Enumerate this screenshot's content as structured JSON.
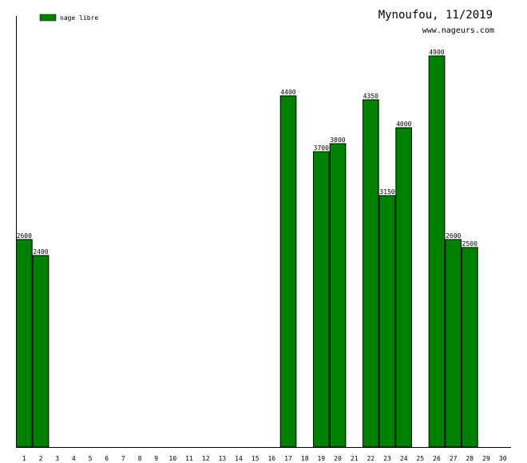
{
  "chart_data": {
    "type": "bar",
    "title": "Mynoufou, 11/2019",
    "subtitle": "www.nageurs.com",
    "xlabel": "",
    "ylabel": "",
    "ylim": [
      0,
      5400
    ],
    "grid": false,
    "legend_position": "top-left",
    "categories": [
      "1",
      "2",
      "3",
      "4",
      "5",
      "6",
      "7",
      "8",
      "9",
      "10",
      "11",
      "12",
      "13",
      "14",
      "15",
      "16",
      "17",
      "18",
      "19",
      "20",
      "21",
      "22",
      "23",
      "24",
      "25",
      "26",
      "27",
      "28",
      "29",
      "30"
    ],
    "series": [
      {
        "name": "nage libre",
        "color": "#008000",
        "values": [
          2600,
          2400,
          0,
          0,
          0,
          0,
          0,
          0,
          0,
          0,
          0,
          0,
          0,
          0,
          0,
          0,
          4400,
          0,
          3700,
          3800,
          0,
          4350,
          3150,
          4000,
          0,
          4900,
          2600,
          2500,
          0,
          0
        ]
      }
    ]
  }
}
